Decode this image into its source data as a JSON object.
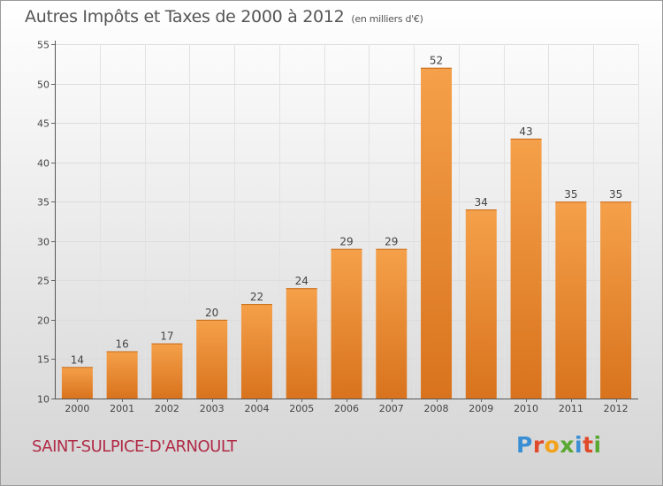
{
  "header": {
    "title": "Autres Impôts et Taxes de 2000 à 2012",
    "unit": "(en milliers d'€)"
  },
  "footer": {
    "commune": "SAINT-SULPICE-D'ARNOULT",
    "logo": [
      "P",
      "r",
      "o",
      "x",
      "i",
      "t",
      "i"
    ],
    "logo_colors": [
      "#3a8fd4",
      "#e0492a",
      "#f2a21b",
      "#5aa832",
      "#3a8fd4",
      "#e0492a",
      "#5aa832"
    ]
  },
  "chart_data": {
    "type": "bar",
    "title": "Autres Impôts et Taxes de 2000 à 2012",
    "subtitle": "(en milliers d'€)",
    "categories": [
      "2000",
      "2001",
      "2002",
      "2003",
      "2004",
      "2005",
      "2006",
      "2007",
      "2008",
      "2009",
      "2010",
      "2011",
      "2012"
    ],
    "values": [
      14,
      16,
      17,
      20,
      22,
      24,
      29,
      29,
      52,
      34,
      43,
      35,
      35
    ],
    "ylim": [
      10,
      55
    ],
    "yticks": [
      10,
      15,
      20,
      25,
      30,
      35,
      40,
      45,
      50,
      55
    ],
    "grid": true,
    "bar_color": "#f5a04a",
    "bar_color_dark": "#d9731d"
  }
}
